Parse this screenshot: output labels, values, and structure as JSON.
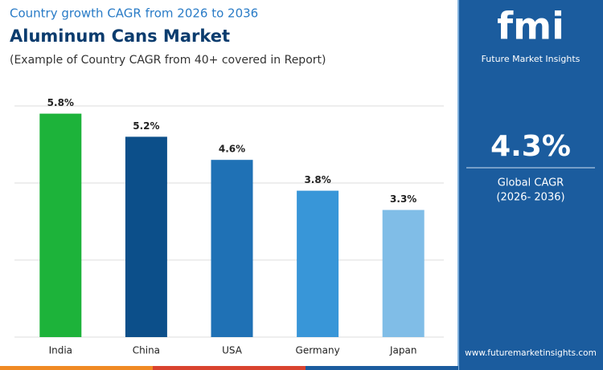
{
  "chart_data": {
    "type": "bar",
    "supertitle": "Country growth CAGR from 2026 to 2036",
    "title": "Aluminum Cans Market",
    "subtitle": "(Example of Country CAGR from 40+ covered in Report)",
    "categories": [
      "India",
      "China",
      "USA",
      "Germany",
      "Japan"
    ],
    "values": [
      5.8,
      5.2,
      4.6,
      3.8,
      3.3
    ],
    "value_labels": [
      "5.8%",
      "5.2%",
      "4.6%",
      "3.8%",
      "3.3%"
    ],
    "colors": [
      "#1db33a",
      "#0c4f8a",
      "#1f71b5",
      "#3896d8",
      "#80bde7"
    ],
    "ylim": [
      0,
      6
    ],
    "yticks": [
      0,
      2,
      4,
      6
    ],
    "grid": true
  },
  "sidebar": {
    "logo": "fmi",
    "brand": "Future Market Insights",
    "stat": "4.3%",
    "stat_label": "Global CAGR",
    "stat_period": "(2026- 2036)",
    "url": "www.futuremarketinsights.com"
  }
}
